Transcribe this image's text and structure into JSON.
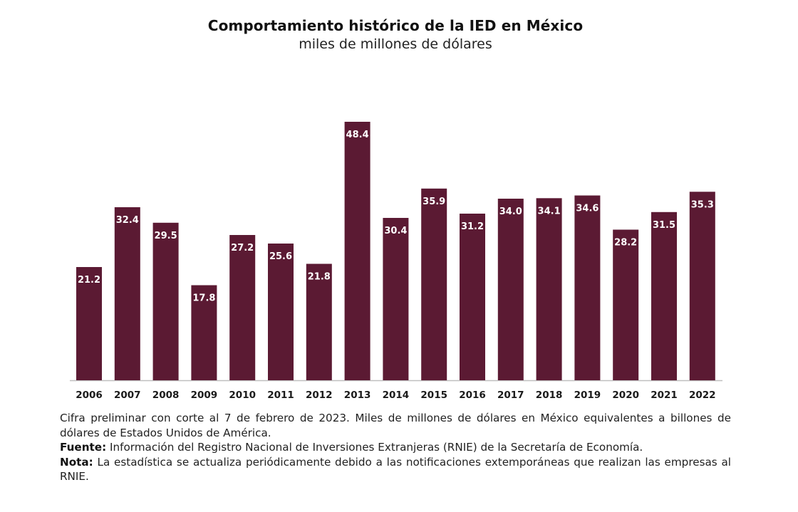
{
  "chart_data": {
    "type": "bar",
    "title": "Comportamiento histórico de la IED en México",
    "subtitle": "miles de millones de dólares",
    "categories": [
      "2006",
      "2007",
      "2008",
      "2009",
      "2010",
      "2011",
      "2012",
      "2013",
      "2014",
      "2015",
      "2016",
      "2017",
      "2018",
      "2019",
      "2020",
      "2021",
      "2022"
    ],
    "values": [
      21.2,
      32.4,
      29.5,
      17.8,
      27.2,
      25.6,
      21.8,
      48.4,
      30.4,
      35.9,
      31.2,
      34.0,
      34.1,
      34.6,
      28.2,
      31.5,
      35.3
    ],
    "value_labels": [
      "21.2",
      "32.4",
      "29.5",
      "17.8",
      "27.2",
      "25.6",
      "21.8",
      "48.4",
      "30.4",
      "35.9",
      "31.2",
      "34.0",
      "34.1",
      "34.6",
      "28.2",
      "31.5",
      "35.3"
    ],
    "ylim": [
      0,
      48.4
    ],
    "bar_color": "#5b1a33",
    "label_color": "#ffffff",
    "baseline_color": "#bfbfbf",
    "grid": false
  },
  "notes": {
    "cifra": "Cifra preliminar con corte al 7 de febrero de 2023. Miles de millones de dólares en México equivalentes a billones de dólares de Estados Unidos de América.",
    "fuente_label": "Fuente:",
    "fuente_text": "Información del Registro Nacional de Inversiones Extranjeras (RNIE) de la Secretaría de Economía.",
    "nota_label": "Nota:",
    "nota_text": "La estadística se actualiza periódicamente debido a las notificaciones extemporáneas que realizan las empresas al RNIE."
  }
}
